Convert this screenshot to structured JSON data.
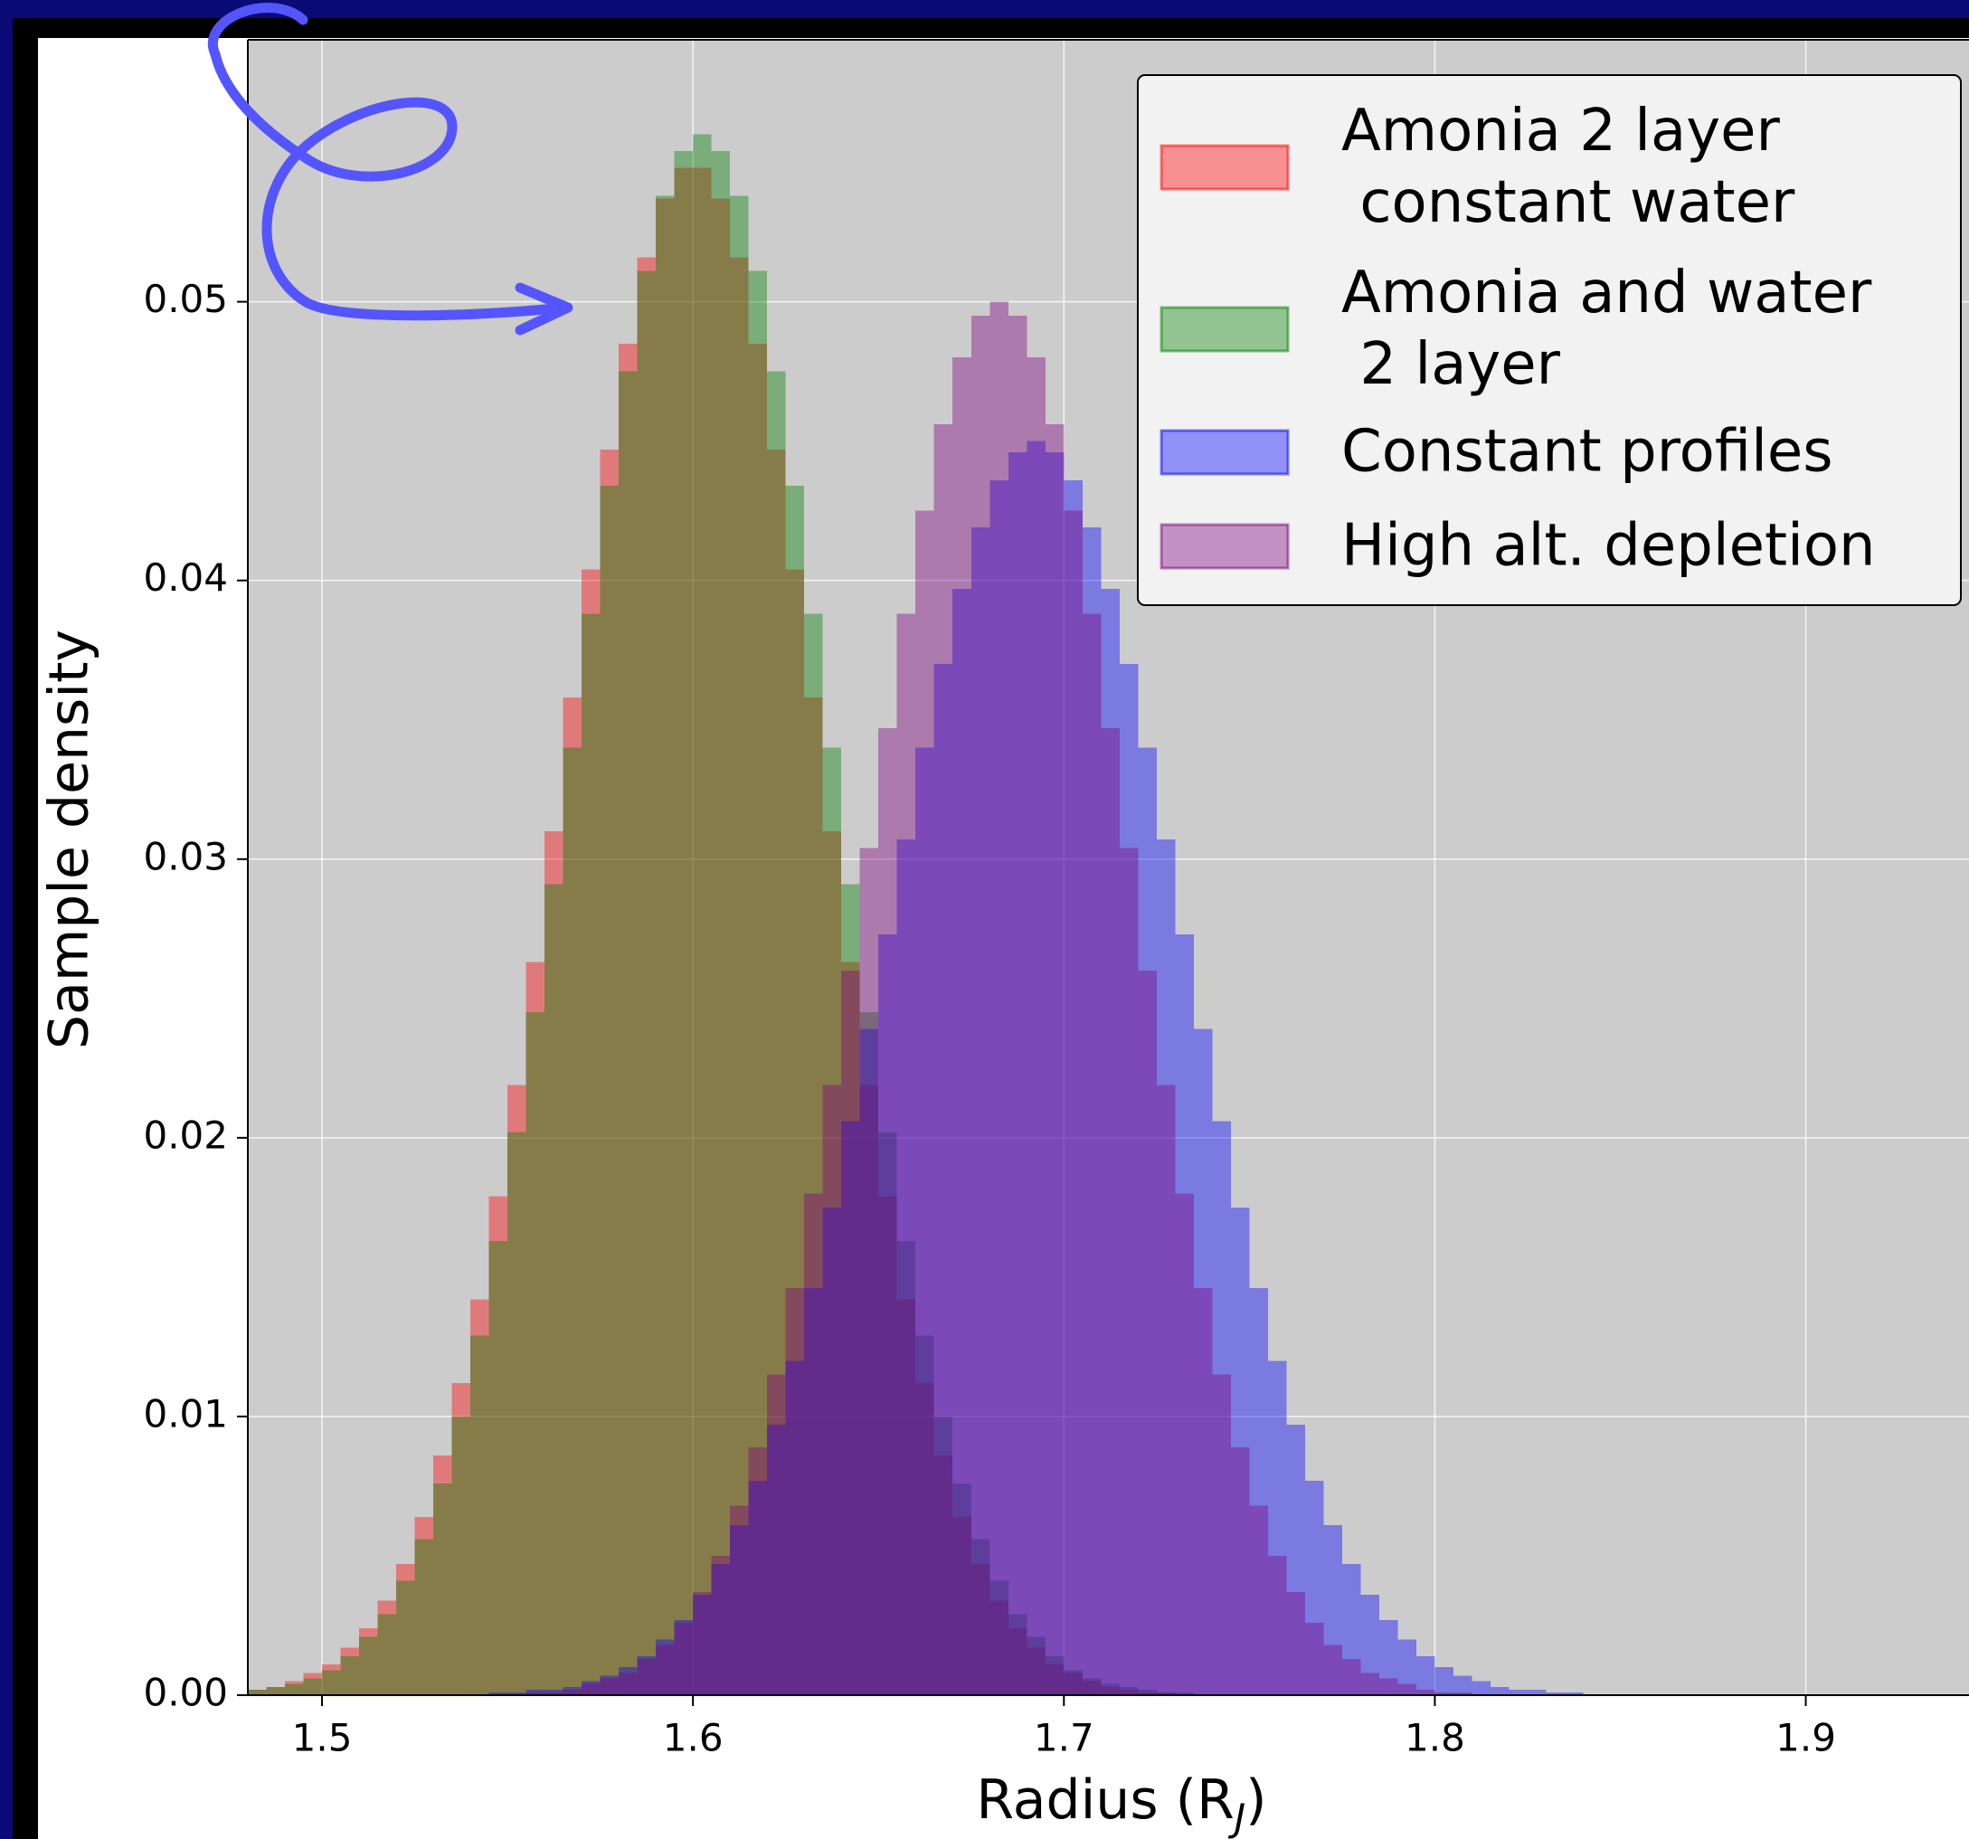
{
  "chart_data": {
    "type": "histogram",
    "xlabel": [
      "Radius (R",
      "J",
      ")"
    ],
    "ylabel": "Sample density",
    "xlim": [
      1.48,
      1.944
    ],
    "ylim": [
      0,
      0.0594
    ],
    "xticks": [
      1.5,
      1.6,
      1.7,
      1.8,
      1.9
    ],
    "yticks": [
      {
        "value": 0,
        "label": "0.00"
      },
      0.01,
      0.02,
      0.03,
      0.04,
      0.05
    ],
    "grid": true,
    "legend": "upper right",
    "alpha": 0.4,
    "bins": [
      1.48,
      1.485,
      1.49,
      1.495,
      1.5,
      1.505,
      1.51,
      1.515,
      1.52,
      1.525,
      1.53,
      1.535,
      1.54,
      1.545,
      1.55,
      1.555,
      1.56,
      1.565,
      1.57,
      1.575,
      1.58,
      1.585,
      1.59,
      1.595,
      1.6,
      1.605,
      1.61,
      1.615,
      1.62,
      1.625,
      1.63,
      1.635,
      1.64,
      1.645,
      1.65,
      1.655,
      1.66,
      1.665,
      1.67,
      1.675,
      1.68,
      1.685,
      1.69,
      1.695,
      1.7,
      1.705,
      1.71,
      1.715,
      1.72,
      1.725,
      1.73,
      1.735,
      1.74,
      1.745,
      1.75,
      1.755,
      1.76,
      1.765,
      1.77,
      1.775,
      1.78,
      1.785,
      1.79,
      1.795,
      1.8,
      1.805,
      1.81,
      1.815,
      1.82,
      1.825,
      1.83,
      1.835,
      1.84,
      1.845,
      1.85,
      1.855,
      1.86
    ],
    "series": [
      {
        "name": "Amonia 2 layer\n constant water",
        "color": "#ff0000",
        "values": [
          0.0002,
          0.0003,
          0.0005,
          0.0008,
          0.0011,
          0.0017,
          0.0024,
          0.0034,
          0.0047,
          0.0064,
          0.0086,
          0.0112,
          0.0142,
          0.0179,
          0.0219,
          0.0263,
          0.031,
          0.0358,
          0.0404,
          0.0447,
          0.0485,
          0.0516,
          0.0537,
          0.0548,
          0.0548,
          0.0537,
          0.0516,
          0.0485,
          0.0447,
          0.0404,
          0.0358,
          0.031,
          0.0263,
          0.0219,
          0.0179,
          0.0142,
          0.0112,
          0.0086,
          0.0064,
          0.0047,
          0.0034,
          0.0024,
          0.0017,
          0.0011,
          0.0008,
          0.0005,
          0.0003,
          0.0002,
          0.0001,
          0.0001,
          0,
          0,
          0,
          0,
          0,
          0,
          0,
          0,
          0,
          0,
          0,
          0,
          0,
          0,
          0,
          0,
          0,
          0,
          0,
          0,
          0,
          0,
          0,
          0,
          0,
          0
        ]
      },
      {
        "name": "Amonia and water\n 2 layer",
        "color": "#008000",
        "values": [
          0.0002,
          0.0003,
          0.0004,
          0.0006,
          0.0009,
          0.0014,
          0.0021,
          0.0029,
          0.0041,
          0.0056,
          0.0076,
          0.01,
          0.0129,
          0.0163,
          0.0202,
          0.0245,
          0.0291,
          0.034,
          0.0388,
          0.0434,
          0.0475,
          0.0511,
          0.0538,
          0.0554,
          0.056,
          0.0554,
          0.0538,
          0.0511,
          0.0475,
          0.0434,
          0.0388,
          0.034,
          0.0291,
          0.0245,
          0.0202,
          0.0163,
          0.0129,
          0.01,
          0.0076,
          0.0056,
          0.0041,
          0.0029,
          0.0021,
          0.0014,
          0.0009,
          0.0006,
          0.0004,
          0.0003,
          0.0002,
          0.0001,
          0.0001,
          0,
          0,
          0,
          0,
          0,
          0,
          0,
          0,
          0,
          0,
          0,
          0,
          0,
          0,
          0,
          0,
          0,
          0,
          0,
          0,
          0,
          0,
          0,
          0,
          0
        ]
      },
      {
        "name": "Constant profiles",
        "color": "#0000ff",
        "values": [
          0,
          0,
          0,
          0,
          0,
          0,
          0,
          0,
          0,
          0,
          0,
          0,
          0,
          0.0001,
          0.0001,
          0.0002,
          0.0002,
          0.0003,
          0.0005,
          0.0007,
          0.001,
          0.0014,
          0.002,
          0.0027,
          0.0036,
          0.0047,
          0.0061,
          0.0077,
          0.0097,
          0.012,
          0.0146,
          0.0175,
          0.0206,
          0.0239,
          0.0273,
          0.0307,
          0.034,
          0.037,
          0.0397,
          0.0419,
          0.0436,
          0.0446,
          0.045,
          0.0446,
          0.0436,
          0.0419,
          0.0397,
          0.037,
          0.034,
          0.0307,
          0.0273,
          0.0239,
          0.0206,
          0.0175,
          0.0146,
          0.012,
          0.0097,
          0.0077,
          0.0061,
          0.0047,
          0.0036,
          0.0027,
          0.002,
          0.0014,
          0.001,
          0.0007,
          0.0005,
          0.0003,
          0.0002,
          0.0002,
          0.0001,
          0.0001,
          0,
          0,
          0,
          0
        ]
      },
      {
        "name": "High alt. depletion",
        "color": "#800080",
        "values": [
          0,
          0,
          0,
          0,
          0,
          0,
          0,
          0,
          0,
          0,
          0,
          0,
          0,
          0,
          0,
          0.0001,
          0.0001,
          0.0002,
          0.0004,
          0.0006,
          0.0008,
          0.0013,
          0.0018,
          0.0026,
          0.0037,
          0.005,
          0.0068,
          0.0089,
          0.0115,
          0.0146,
          0.018,
          0.0219,
          0.026,
          0.0304,
          0.0347,
          0.0388,
          0.0425,
          0.0456,
          0.048,
          0.0495,
          0.05,
          0.0495,
          0.048,
          0.0456,
          0.0425,
          0.0388,
          0.0347,
          0.0304,
          0.026,
          0.0219,
          0.018,
          0.0146,
          0.0115,
          0.0089,
          0.0068,
          0.005,
          0.0037,
          0.0026,
          0.0018,
          0.0013,
          0.0008,
          0.0006,
          0.0004,
          0.0002,
          0.0001,
          0.0001,
          0,
          0,
          0,
          0,
          0,
          0,
          0,
          0,
          0,
          0
        ]
      }
    ]
  }
}
